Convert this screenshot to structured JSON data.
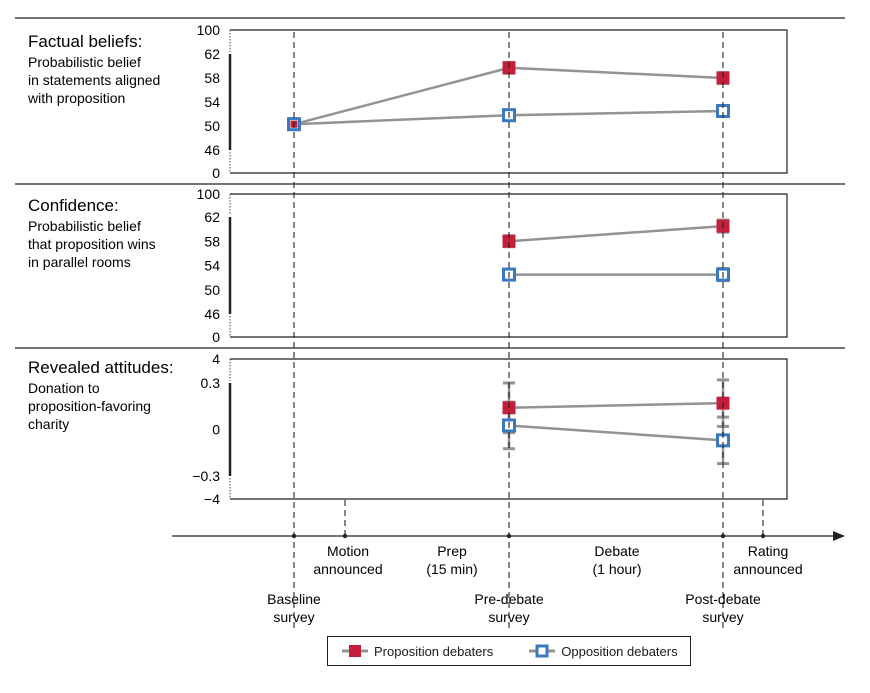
{
  "chart_data": [
    {
      "type": "line",
      "title": "Factual beliefs:",
      "subtitle": [
        "Probabilistic belief",
        "in statements aligned",
        "with proposition"
      ],
      "yticks": [
        "100",
        "62",
        "58",
        "54",
        "50",
        "46",
        "0"
      ],
      "ylim": [
        46,
        62
      ],
      "axis_break": true,
      "x": [
        "Baseline survey",
        "Pre-debate survey",
        "Post-debate survey"
      ],
      "series": [
        {
          "name": "Proposition debaters",
          "values": [
            50.3,
            59.7,
            58.0
          ],
          "err": [
            0.8,
            0.9,
            0.9
          ]
        },
        {
          "name": "Opposition debaters",
          "values": [
            50.3,
            51.8,
            52.5
          ],
          "err": [
            0.9,
            0.9,
            0.9
          ]
        }
      ]
    },
    {
      "type": "line",
      "title": "Confidence:",
      "subtitle": [
        "Probabilistic belief",
        "that proposition wins",
        "in parallel rooms"
      ],
      "yticks": [
        "100",
        "62",
        "58",
        "54",
        "50",
        "46",
        "0"
      ],
      "ylim": [
        46,
        62
      ],
      "axis_break": true,
      "x": [
        "Baseline survey",
        "Pre-debate survey",
        "Post-debate survey"
      ],
      "series": [
        {
          "name": "Proposition debaters",
          "values": [
            null,
            58.0,
            60.5
          ],
          "err": [
            null,
            0.9,
            1.0
          ]
        },
        {
          "name": "Opposition debaters",
          "values": [
            null,
            52.5,
            52.5
          ],
          "err": [
            null,
            0.8,
            1.0
          ]
        }
      ]
    },
    {
      "type": "line",
      "title": "Revealed attitudes:",
      "subtitle": [
        "Donation to",
        "proposition-favoring",
        "charity"
      ],
      "yticks": [
        "4",
        "0.3",
        "0",
        "−0.3",
        "−4"
      ],
      "ylim": [
        -0.3,
        0.3
      ],
      "axis_break": true,
      "x": [
        "Baseline survey",
        "Pre-debate survey",
        "Post-debate survey"
      ],
      "series": [
        {
          "name": "Proposition debaters",
          "values": [
            null,
            0.14,
            0.17
          ],
          "err": [
            null,
            0.16,
            0.15
          ]
        },
        {
          "name": "Opposition debaters",
          "values": [
            null,
            0.026,
            -0.07
          ],
          "err": [
            null,
            0.15,
            0.15
          ]
        }
      ]
    }
  ],
  "timeline": {
    "events_below": [
      {
        "label": [
          "Baseline",
          "survey"
        ]
      },
      {
        "label": [
          "Pre-debate",
          "survey"
        ]
      },
      {
        "label": [
          "Post-debate",
          "survey"
        ]
      }
    ],
    "events_above": [
      {
        "label": [
          "Motion",
          "announced"
        ]
      },
      {
        "label": [
          "Prep",
          "(15 min)"
        ]
      },
      {
        "label": [
          "Debate",
          "(1 hour)"
        ]
      },
      {
        "label": [
          "Rating",
          "announced"
        ]
      }
    ]
  },
  "legend": {
    "items": [
      {
        "label": "Proposition debaters",
        "marker": "filled-square"
      },
      {
        "label": "Opposition debaters",
        "marker": "open-square"
      }
    ]
  },
  "colors": {
    "proposition": "#c41e3a",
    "opposition": "#3a78c0",
    "line": "#939393",
    "axis": "#222222"
  }
}
